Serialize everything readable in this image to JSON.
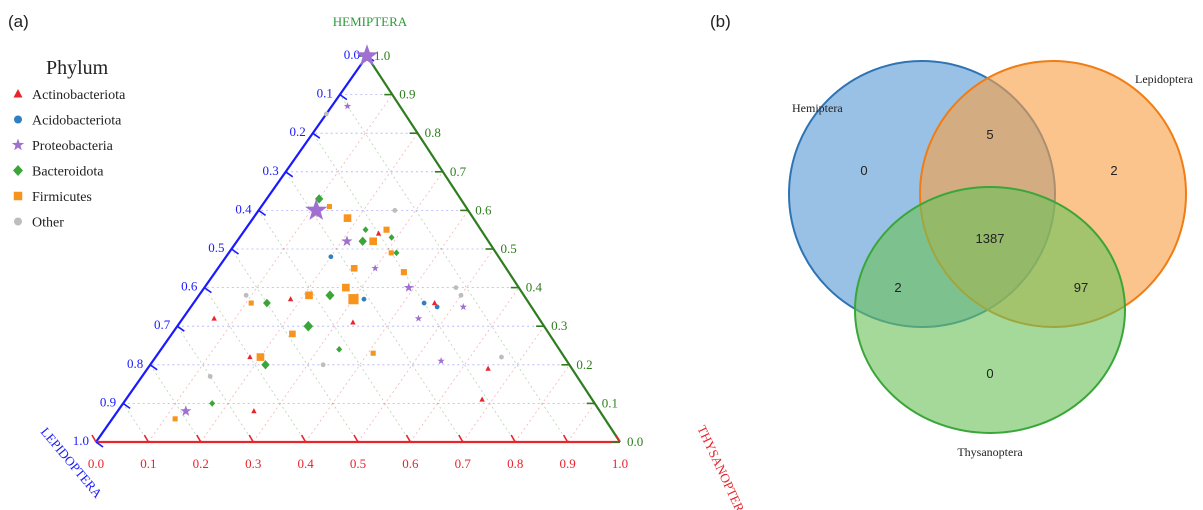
{
  "panels": {
    "a": "(a)",
    "b": "(b)"
  },
  "chart_data": [
    {
      "type": "scatter",
      "subtype": "ternary",
      "axes": {
        "top": {
          "label": "HEMIPTERA",
          "color": "#2e9a3a"
        },
        "left": {
          "label": "LEPIDOPTERA",
          "color": "#1a1aff"
        },
        "right": {
          "label": "THYSANOPTERA",
          "color": "#e8242c"
        }
      },
      "ticks": {
        "left": [
          "0.0",
          "0.1",
          "0.2",
          "0.3",
          "0.4",
          "0.5",
          "0.6",
          "0.7",
          "0.8",
          "0.9",
          "1.0"
        ],
        "right": [
          "1.0",
          "0.9",
          "0.8",
          "0.7",
          "0.6",
          "0.5",
          "0.4",
          "0.3",
          "0.2",
          "0.1",
          "0.0"
        ],
        "bottom": [
          "0.0",
          "0.1",
          "0.2",
          "0.3",
          "0.4",
          "0.5",
          "0.6",
          "0.7",
          "0.8",
          "0.9",
          "1.0"
        ]
      },
      "grid": true,
      "legend": {
        "title": "Phylum",
        "placement": "top-left",
        "entries": [
          {
            "name": "Actinobacteriota",
            "color": "#e8242c",
            "shape": "triangle"
          },
          {
            "name": "Acidobacteriota",
            "color": "#2f7fc1",
            "shape": "circle"
          },
          {
            "name": "Proteobacteria",
            "color": "#a070d0",
            "shape": "star"
          },
          {
            "name": "Bacteroidota",
            "color": "#3aa63a",
            "shape": "diamond"
          },
          {
            "name": "Firmicutes",
            "color": "#f7941d",
            "shape": "square"
          },
          {
            "name": "Other",
            "color": "#bdbdbd",
            "shape": "circle"
          }
        ]
      },
      "series": [
        {
          "name": "Proteobacteria",
          "points": [
            [
              0.0,
              1.0,
              0.0,
              3
            ],
            [
              0.77,
              0.87,
              0.1,
              1
            ],
            [
              0.7,
              0.6,
              0.29,
              3
            ],
            [
              0.39,
              0.52,
              0.27,
              1.5
            ],
            [
              0.54,
              0.4,
              0.21,
              1.3
            ],
            [
              0.13,
              0.08,
              0.79,
              1.5
            ],
            [
              0.55,
              0.21,
              0.24,
              1
            ],
            [
              0.45,
              0.32,
              0.23,
              1
            ],
            [
              0.3,
              0.45,
              0.25,
              1
            ],
            [
              0.62,
              0.35,
              0.13,
              1
            ]
          ]
        },
        {
          "name": "Firmicutes",
          "points": [
            [
              0.37,
              0.55,
              0.18,
              1.2
            ],
            [
              0.36,
              0.44,
              0.2,
              1.2
            ],
            [
              0.63,
              0.52,
              0.22,
              1.5
            ],
            [
              0.7,
              0.58,
              0.24,
              1.5
            ],
            [
              0.47,
              0.45,
              0.29,
              1.3
            ],
            [
              0.42,
              0.37,
              0.33,
              2
            ],
            [
              0.4,
              0.4,
              0.33,
              1.5
            ],
            [
              0.35,
              0.38,
              0.41,
              1.5
            ],
            [
              0.3,
              0.28,
              0.49,
              1.3
            ],
            [
              0.23,
              0.22,
              0.58,
              1.5
            ],
            [
              0.09,
              0.06,
              0.82,
              1
            ],
            [
              0.19,
              0.36,
              0.53,
              1
            ],
            [
              0.52,
              0.61,
              0.26,
              1
            ],
            [
              0.64,
              0.49,
              0.2,
              1
            ],
            [
              0.57,
              0.23,
              0.36,
              1
            ]
          ]
        },
        {
          "name": "Bacteroidota",
          "points": [
            [
              0.38,
              0.63,
              0.27,
              1.4
            ],
            [
              0.44,
              0.52,
              0.24,
              1.4
            ],
            [
              0.37,
              0.38,
              0.37,
              1.5
            ],
            [
              0.3,
              0.3,
              0.45,
              1.6
            ],
            [
              0.22,
              0.2,
              0.58,
              1.4
            ],
            [
              0.26,
              0.36,
              0.5,
              1.3
            ],
            [
              0.48,
              0.55,
              0.22,
              1
            ],
            [
              0.56,
              0.53,
              0.18,
              1
            ],
            [
              0.66,
              0.49,
              0.19,
              1
            ],
            [
              0.22,
              0.1,
              0.73,
              1
            ],
            [
              0.41,
              0.24,
              0.42,
              1
            ]
          ]
        },
        {
          "name": "Actinobacteriota",
          "points": [
            [
              0.43,
              0.31,
              0.36,
              1
            ],
            [
              0.55,
              0.36,
              0.18,
              1
            ],
            [
              0.27,
              0.37,
              0.45,
              1
            ],
            [
              0.63,
              0.11,
              0.21,
              1
            ],
            [
              0.61,
              0.19,
              0.16,
              1
            ],
            [
              0.29,
              0.08,
              0.66,
              1
            ],
            [
              0.18,
              0.22,
              0.6,
              1
            ],
            [
              0.34,
              0.59,
              0.29,
              1
            ],
            [
              0.47,
              0.54,
              0.2,
              1
            ],
            [
              0.12,
              0.32,
              0.62,
              1
            ]
          ]
        },
        {
          "name": "Acidobacteriota",
          "points": [
            [
              0.33,
              0.37,
              0.31,
              1
            ],
            [
              0.48,
              0.35,
              0.18,
              1
            ],
            [
              0.25,
              0.48,
              0.32,
              1
            ],
            [
              0.52,
              0.36,
              0.2,
              1
            ]
          ]
        },
        {
          "name": "Other",
          "points": [
            [
              0.11,
              0.17,
              0.7,
              1
            ],
            [
              0.56,
              0.4,
              0.12,
              1
            ],
            [
              0.51,
              0.38,
              0.12,
              1
            ],
            [
              0.39,
              0.2,
              0.47,
              1
            ],
            [
              0.06,
              0.38,
              0.53,
              1
            ],
            [
              0.67,
              0.22,
              0.12,
              1
            ],
            [
              0.0,
              0.85,
              0.15,
              1
            ],
            [
              0.44,
              0.6,
              0.14,
              1
            ]
          ]
        }
      ]
    },
    {
      "type": "venn",
      "sets": [
        {
          "name": "Hemiptera",
          "color": "#5b9bd5",
          "stroke": "#2e74b5"
        },
        {
          "name": "Lepidoptera",
          "color": "#f8a046",
          "stroke": "#f07d14"
        },
        {
          "name": "Thysanoptera",
          "color": "#6cc25a",
          "stroke": "#3aa63a"
        }
      ],
      "regions": {
        "only_hemiptera": "0",
        "only_lepidoptera": "2",
        "only_thysanoptera": "0",
        "hemiptera_lepidoptera": "5",
        "hemiptera_thysanoptera": "2",
        "lepidoptera_thysanoptera": "97",
        "all_three": "1387"
      }
    }
  ]
}
